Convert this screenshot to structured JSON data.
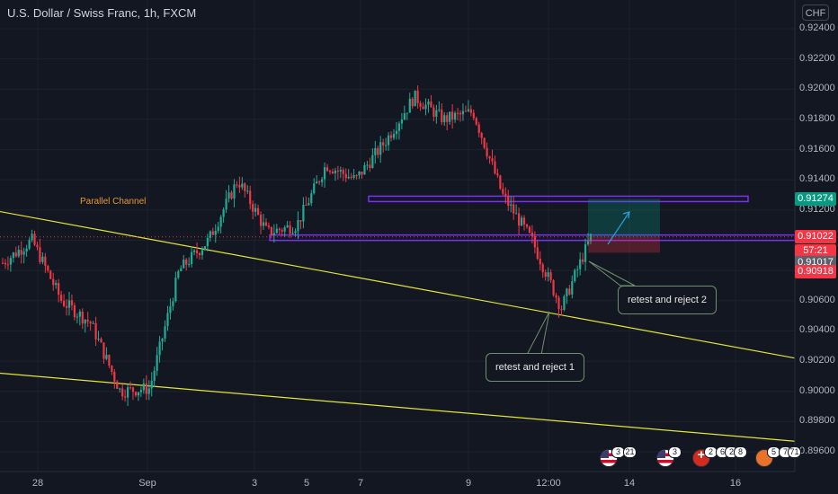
{
  "header": {
    "title": "U.S. Dollar / Swiss Franc, 1h, FXCM",
    "currency_button": "CHF"
  },
  "price_tags": {
    "resistance": {
      "value": "0.91274",
      "color": "#089981"
    },
    "last_price": {
      "value": "0.91022",
      "color": "#f23645"
    },
    "countdown": {
      "value": "57:21",
      "color": "#f23645"
    },
    "support": {
      "value": "0.91017",
      "color": "#5d606b"
    },
    "stop": {
      "value": "0.90918",
      "color": "#f23645"
    }
  },
  "annotations": {
    "channel_label": "Parallel Channel",
    "callout1": "retest and reject 1",
    "callout2": "retest and reject 2"
  },
  "events": [
    {
      "flag": "us",
      "count": "3",
      "extra": "21"
    },
    {
      "flag": "us",
      "count": "3",
      "extra": ""
    },
    {
      "flag": "ch",
      "count": "2",
      "extra": "6 2 8"
    },
    {
      "flag": "or",
      "count": "5",
      "extra": "7 71"
    }
  ],
  "colors": {
    "bull": "#22ab94",
    "bear": "#f23645",
    "zone": "#7b2ff7",
    "channel": "#e4e436",
    "background": "#131722"
  },
  "chart_data": {
    "type": "candlestick",
    "title": "U.S. Dollar / Swiss Franc, 1h, FXCM",
    "y_ticks": [
      0.896,
      0.898,
      0.9,
      0.902,
      0.904,
      0.906,
      0.908,
      0.91,
      0.912,
      0.914,
      0.916,
      0.918,
      0.92,
      0.922,
      0.924
    ],
    "y_tick_labels": [
      "0.89600",
      "0.89800",
      "0.90000",
      "0.90200",
      "0.90400",
      "0.90600",
      "0.90800",
      "0.91000",
      "0.91200",
      "0.91400",
      "0.91600",
      "0.91800",
      "0.92000",
      "0.92200",
      "0.92400"
    ],
    "ylim": [
      0.8955,
      0.925
    ],
    "x_labels": [
      "28",
      "Sep",
      "3",
      "5",
      "7",
      "9",
      "12:00",
      "14",
      "16"
    ],
    "grid": true,
    "key_points": [
      {
        "time": "start",
        "price": 0.9085
      },
      {
        "time": "27 Aug",
        "price": 0.91
      },
      {
        "time": "28 Aug",
        "price": 0.906
      },
      {
        "time": "29 Aug",
        "price": 0.9045
      },
      {
        "time": "30 Aug",
        "price": 0.9
      },
      {
        "time": "31 Aug",
        "price": 0.9002
      },
      {
        "time": "1 Sep",
        "price": 0.908
      },
      {
        "time": "2 Sep",
        "price": 0.91
      },
      {
        "time": "3 Sep",
        "price": 0.914
      },
      {
        "time": "4 Sep",
        "price": 0.9105
      },
      {
        "time": "5 Sep",
        "price": 0.911
      },
      {
        "time": "6 Sep",
        "price": 0.915
      },
      {
        "time": "7 Sep",
        "price": 0.914
      },
      {
        "time": "8 Sep",
        "price": 0.9165
      },
      {
        "time": "8.5 Sep",
        "price": 0.9195
      },
      {
        "time": "9 Sep",
        "price": 0.918
      },
      {
        "time": "10 Sep",
        "price": 0.9185
      },
      {
        "time": "10.5 Sep",
        "price": 0.913
      },
      {
        "time": "11 Sep",
        "price": 0.91
      },
      {
        "time": "11.5 Sep",
        "price": 0.9055
      },
      {
        "time": "12 Sep",
        "price": 0.9102
      }
    ],
    "levels": [
      {
        "name": "resistance zone",
        "price": 0.91274
      },
      {
        "name": "support zone",
        "price": 0.91017
      }
    ],
    "position": {
      "entry": 0.91022,
      "target": 0.91274,
      "stop": 0.90918
    },
    "channel_lines": [
      {
        "from": [
          "start",
          0.9119
        ],
        "to": [
          "end",
          0.9022
        ]
      },
      {
        "from": [
          "start",
          0.9012
        ],
        "to": [
          "end",
          0.8967
        ]
      }
    ]
  }
}
